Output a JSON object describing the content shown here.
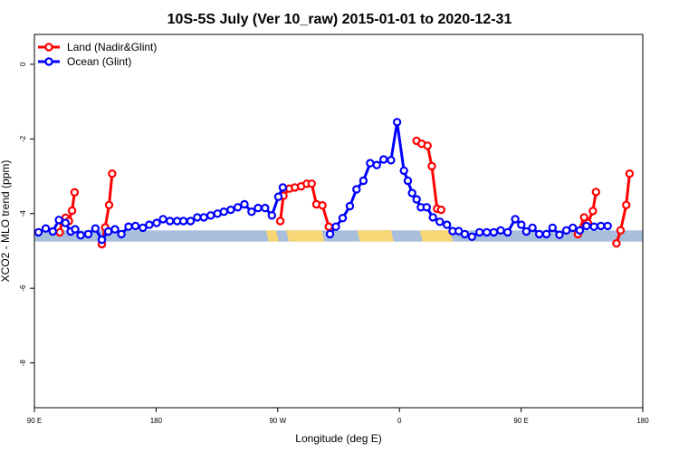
{
  "chart_data": {
    "type": "line",
    "title": "10S-5S July (Ver 10_raw)   2015-01-01 to 2020-12-31",
    "xlabel": "Longitude (deg E)",
    "ylabel": "XCO2 - MLO trend (ppm)",
    "xlim": [
      90,
      450
    ],
    "ylim": [
      -9.2,
      0.8
    ],
    "x_ticks": [
      {
        "value": 90,
        "label": "90 E"
      },
      {
        "value": 162,
        "label": "180"
      },
      {
        "value": 234,
        "label": "90 W"
      },
      {
        "value": 306,
        "label": "0"
      },
      {
        "value": 378,
        "label": "90 E"
      },
      {
        "value": 450,
        "label": "180"
      }
    ],
    "y_ticks": [
      {
        "value": 0,
        "label": "0"
      },
      {
        "value": -2,
        "label": "-2"
      },
      {
        "value": -4,
        "label": "-4"
      },
      {
        "value": -6,
        "label": "-6"
      },
      {
        "value": -8,
        "label": "-8"
      }
    ],
    "legend_position": "top-left",
    "surface_band": {
      "y_range": [
        -4.75,
        -4.45
      ],
      "ocean_color": "#a7bfdc",
      "land_color": "#f7d675",
      "land_segments": [
        [
          227,
          233
        ],
        [
          239,
          260
        ],
        [
          281,
          301
        ],
        [
          318,
          336
        ]
      ]
    },
    "series": [
      {
        "name": "Land (Nadir&Glint)",
        "color": "#ff0000",
        "segments": [
          [
            [
              105,
              -4.5
            ],
            [
              106.4,
              -4.22
            ],
            [
              108.5,
              -4.11
            ],
            [
              110.4,
              -4.2
            ],
            [
              112.3,
              -3.92
            ],
            [
              113.8,
              -3.43
            ]
          ],
          [
            [
              129.9,
              -4.82
            ],
            [
              131.9,
              -4.37
            ],
            [
              134.2,
              -3.77
            ],
            [
              136,
              -2.93
            ]
          ],
          [
            [
              235.5,
              -4.2
            ],
            [
              237.4,
              -3.52
            ],
            [
              240.9,
              -3.33
            ],
            [
              244.1,
              -3.3
            ],
            [
              247.8,
              -3.27
            ],
            [
              251.2,
              -3.2
            ],
            [
              254.1,
              -3.2
            ],
            [
              256.9,
              -3.75
            ],
            [
              260.4,
              -3.78
            ],
            [
              264.2,
              -4.35
            ]
          ],
          [
            [
              316.1,
              -2.05
            ],
            [
              319.2,
              -2.13
            ],
            [
              322.6,
              -2.18
            ],
            [
              325.2,
              -2.73
            ],
            [
              328.3,
              -3.87
            ],
            [
              330.7,
              -3.9
            ]
          ],
          [
            [
              411.6,
              -4.55
            ],
            [
              415.3,
              -4.1
            ],
            [
              417.5,
              -4.25
            ],
            [
              420.5,
              -3.93
            ],
            [
              422.3,
              -3.42
            ]
          ],
          [
            [
              434.4,
              -4.8
            ],
            [
              436.9,
              -4.45
            ],
            [
              440.2,
              -3.77
            ],
            [
              442.2,
              -2.93
            ]
          ]
        ]
      },
      {
        "name": "Ocean (Glint)",
        "color": "#0000ff",
        "segments": [
          [
            [
              92.4,
              -4.5
            ],
            [
              96.7,
              -4.4
            ],
            [
              100.9,
              -4.48
            ],
            [
              104.5,
              -4.17
            ],
            [
              108.4,
              -4.25
            ],
            [
              111.5,
              -4.48
            ],
            [
              114.1,
              -4.42
            ],
            [
              117.4,
              -4.58
            ],
            [
              121.9,
              -4.55
            ],
            [
              126.1,
              -4.4
            ],
            [
              129.9,
              -4.7
            ],
            [
              133.7,
              -4.48
            ],
            [
              137.7,
              -4.42
            ],
            [
              141.5,
              -4.55
            ],
            [
              145.7,
              -4.35
            ],
            [
              149.8,
              -4.33
            ],
            [
              154.2,
              -4.38
            ],
            [
              158,
              -4.3
            ],
            [
              162.3,
              -4.25
            ],
            [
              166.1,
              -4.15
            ],
            [
              170.2,
              -4.2
            ],
            [
              174.5,
              -4.2
            ],
            [
              178.2,
              -4.2
            ],
            [
              182.4,
              -4.2
            ],
            [
              186.4,
              -4.1
            ],
            [
              190.3,
              -4.1
            ],
            [
              194.3,
              -4.05
            ],
            [
              198.3,
              -4
            ],
            [
              202.1,
              -3.95
            ],
            [
              206.2,
              -3.9
            ],
            [
              210.3,
              -3.83
            ],
            [
              214.3,
              -3.75
            ],
            [
              218.5,
              -3.95
            ],
            [
              222.3,
              -3.85
            ],
            [
              226.5,
              -3.85
            ],
            [
              230.5,
              -4.05
            ],
            [
              234.4,
              -3.55
            ],
            [
              237,
              -3.3
            ]
          ],
          [
            [
              264.9,
              -4.55
            ],
            [
              268.4,
              -4.35
            ],
            [
              272.4,
              -4.12
            ],
            [
              276.7,
              -3.8
            ],
            [
              280.6,
              -3.35
            ],
            [
              284.7,
              -3.12
            ],
            [
              288.7,
              -2.65
            ],
            [
              292.6,
              -2.7
            ],
            [
              296.6,
              -2.55
            ],
            [
              301,
              -2.57
            ],
            [
              304.6,
              -1.55
            ],
            [
              308.7,
              -2.85
            ],
            [
              311,
              -3.12
            ],
            [
              313.5,
              -3.45
            ],
            [
              316.2,
              -3.62
            ],
            [
              318.7,
              -3.83
            ],
            [
              322.1,
              -3.83
            ],
            [
              325.8,
              -4.1
            ],
            [
              329.9,
              -4.22
            ],
            [
              334.1,
              -4.3
            ],
            [
              337.5,
              -4.47
            ],
            [
              341.1,
              -4.47
            ],
            [
              344.7,
              -4.55
            ],
            [
              348.9,
              -4.62
            ],
            [
              353.4,
              -4.5
            ],
            [
              357.7,
              -4.5
            ],
            [
              361.8,
              -4.5
            ],
            [
              365.9,
              -4.45
            ],
            [
              370,
              -4.5
            ],
            [
              374.5,
              -4.15
            ],
            [
              378.1,
              -4.3
            ],
            [
              381.1,
              -4.48
            ],
            [
              384.7,
              -4.38
            ],
            [
              388.7,
              -4.55
            ],
            [
              393,
              -4.55
            ],
            [
              396.6,
              -4.38
            ],
            [
              400.7,
              -4.57
            ],
            [
              404.8,
              -4.45
            ],
            [
              408.6,
              -4.38
            ],
            [
              412.7,
              -4.45
            ],
            [
              416.7,
              -4.33
            ],
            [
              421.1,
              -4.35
            ],
            [
              425.2,
              -4.33
            ],
            [
              429.2,
              -4.33
            ]
          ]
        ]
      }
    ]
  }
}
